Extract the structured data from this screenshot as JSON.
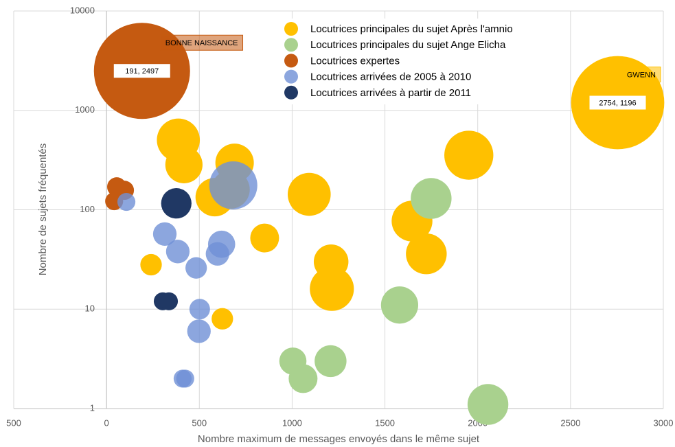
{
  "chart_data": {
    "type": "scatter",
    "x_label": "Nombre maximum de messages envoyés dans le même sujet",
    "y_label": "Nombre de sujets fréquentés",
    "xlim": [
      -500,
      3000
    ],
    "xticks": [
      {
        "value": -500,
        "label": "500"
      },
      0,
      500,
      1000,
      1500,
      2000,
      2500,
      3000
    ],
    "ylim": [
      1,
      10000
    ],
    "yticks": [
      1,
      10,
      100,
      1000,
      10000
    ],
    "yscale": "log",
    "grid": true,
    "legend": "top",
    "series": [
      {
        "name": "Locutrices principales du sujet Après l'amnio",
        "color": "#FFC000",
        "opacity": 1,
        "x": [
          2754,
          387,
          417,
          690,
          668,
          583,
          852,
          1092,
          1210,
          1214,
          240,
          624,
          1646,
          1723,
          1952
        ],
        "values": [
          1196,
          503,
          284,
          297,
          160,
          134,
          52,
          143,
          30,
          16,
          28,
          8,
          77,
          36,
          354
        ],
        "sizes": [
          94,
          20,
          15,
          16,
          16,
          16,
          9,
          20,
          13,
          21,
          5,
          5,
          18,
          18,
          26
        ],
        "value_labels": [
          "2754, 1196",
          null,
          null,
          null,
          null,
          null,
          null,
          null,
          null,
          null,
          null,
          null,
          null,
          null,
          null
        ],
        "callouts": [
          "GWENN",
          null,
          null,
          null,
          null,
          null,
          null,
          null,
          null,
          null,
          null,
          null,
          null,
          null,
          null
        ]
      },
      {
        "name": "Locutrices principales du sujet Ange Elicha",
        "color": "#A9D18E",
        "opacity": 1,
        "x": [
          1749,
          1579,
          1004,
          1207,
          1059,
          2055
        ],
        "values": [
          130,
          11,
          3,
          3,
          2,
          1.1
        ],
        "sizes": [
          18,
          15,
          8,
          11,
          9,
          18
        ]
      },
      {
        "name": "Locutrices expertes",
        "color": "#C55A11",
        "opacity": 1,
        "x": [
          191,
          55,
          41,
          96
        ],
        "values": [
          2497,
          170,
          122,
          157
        ],
        "sizes": [
          100,
          4,
          3.5,
          4
        ],
        "value_labels": [
          "191, 2497",
          null,
          null,
          null
        ],
        "callouts": [
          "BONNE NAISSANCE",
          null,
          null,
          null
        ]
      },
      {
        "name": "Locutrices arrivées de 2005 à 2010",
        "color": "#6F90D6",
        "opacity": 0.8,
        "x": [
          107,
          683,
          314,
          384,
          483,
          620,
          598,
          502,
          498,
          410,
          424
        ],
        "values": [
          120,
          176,
          57,
          38,
          26,
          45,
          36,
          10,
          6,
          2,
          2
        ],
        "sizes": [
          3.5,
          25,
          6,
          6,
          5,
          8,
          6,
          4.6,
          6,
          3.5,
          3.5
        ]
      },
      {
        "name": "Locutrices arrivées à partir de 2011",
        "color": "#203864",
        "opacity": 1,
        "x": [
          376,
          303,
          336
        ],
        "values": [
          116,
          12,
          12
        ],
        "sizes": [
          10,
          3.5,
          3.5
        ]
      }
    ]
  }
}
